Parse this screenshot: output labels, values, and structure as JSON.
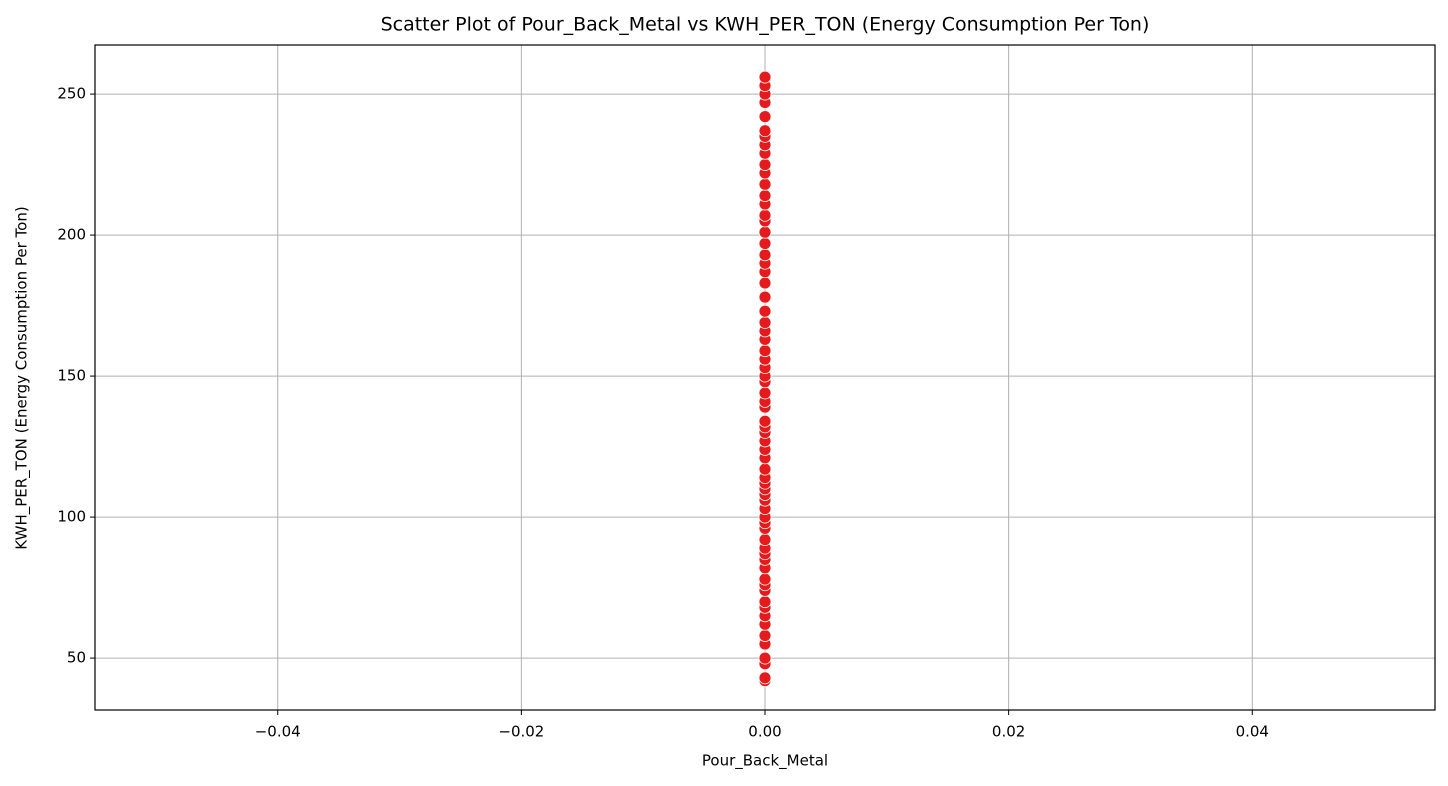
{
  "chart_data": {
    "type": "scatter",
    "title": "Scatter Plot of Pour_Back_Metal vs KWH_PER_TON (Energy Consumption Per Ton)",
    "x_label": "Pour_Back_Metal",
    "y_label": "KWH_PER_TON (Energy Consumption Per Ton)",
    "x": [
      0,
      0,
      0,
      0,
      0,
      0,
      0,
      0,
      0,
      0,
      0,
      0,
      0,
      0,
      0,
      0,
      0,
      0,
      0,
      0,
      0,
      0,
      0,
      0,
      0,
      0,
      0,
      0,
      0,
      0,
      0,
      0,
      0,
      0,
      0,
      0,
      0,
      0,
      0,
      0,
      0,
      0,
      0,
      0,
      0,
      0,
      0,
      0,
      0,
      0,
      0,
      0,
      0,
      0,
      0,
      0,
      0,
      0,
      0,
      0,
      0,
      0,
      0,
      0,
      0,
      0,
      0,
      0,
      0
    ],
    "values": [
      42,
      43,
      48,
      50,
      55,
      58,
      62,
      65,
      68,
      70,
      74,
      76,
      78,
      82,
      85,
      87,
      89,
      92,
      96,
      98,
      100,
      103,
      106,
      108,
      110,
      112,
      114,
      117,
      121,
      124,
      127,
      130,
      132,
      134,
      139,
      141,
      144,
      148,
      150,
      153,
      156,
      159,
      163,
      166,
      169,
      173,
      178,
      183,
      187,
      190,
      193,
      197,
      201,
      205,
      207,
      211,
      214,
      218,
      222,
      225,
      229,
      232,
      235,
      237,
      242,
      247,
      250,
      253,
      256
    ],
    "color": "#e41a1c",
    "xlim": [
      -0.055,
      0.055
    ],
    "xticks": [
      {
        "value": -0.04,
        "label": "−0.04"
      },
      {
        "value": -0.02,
        "label": "−0.02"
      },
      {
        "value": 0,
        "label": "0.00"
      },
      0.02,
      0.04
    ],
    "ylim": [
      31.6,
      267.4
    ],
    "yticks": [
      50,
      100,
      150,
      200,
      250
    ],
    "grid": true
  }
}
